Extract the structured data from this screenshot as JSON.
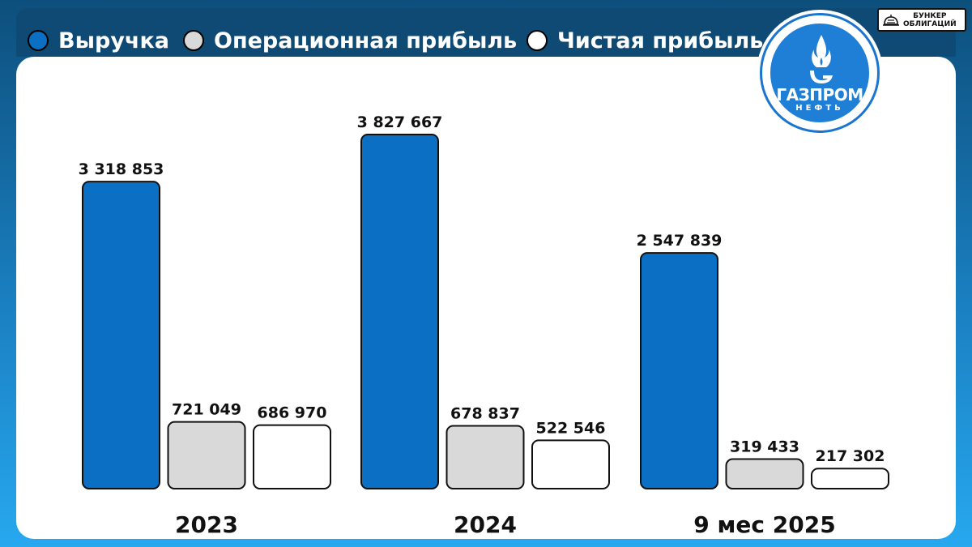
{
  "legend": {
    "items": [
      {
        "label": "Выручка",
        "color": "#0b6fc4"
      },
      {
        "label": "Операционная прибыль",
        "color": "#d9d9d9"
      },
      {
        "label": "Чистая прибыль",
        "color": "#ffffff"
      }
    ]
  },
  "brand": {
    "line1": "БУНКЕР",
    "line2": "ОБЛИГАЦИЙ",
    "icon": "bunker-icon"
  },
  "logo": {
    "word1": "ГАЗПРОМ",
    "word2": "НЕФТЬ",
    "icon": "gas-flame-icon",
    "color": "#1f7fd6"
  },
  "chart_data": {
    "type": "bar",
    "categories": [
      "2023",
      "2024",
      "9 мес 2025"
    ],
    "series": [
      {
        "name": "Выручка",
        "values": [
          3318853,
          3827667,
          2547839
        ],
        "labels": [
          "3 318 853",
          "3 827 667",
          "2 547 839"
        ],
        "color": "#0b6fc4"
      },
      {
        "name": "Операционная прибыль",
        "values": [
          721049,
          678837,
          319433
        ],
        "labels": [
          "721 049",
          "678 837",
          "319 433"
        ],
        "color": "#d9d9d9"
      },
      {
        "name": "Чистая прибыль",
        "values": [
          686970,
          522546,
          217302
        ],
        "labels": [
          "686 970",
          "522 546",
          "217 302"
        ],
        "color": "#ffffff"
      }
    ],
    "grid": false,
    "legend_position": "top-left"
  }
}
